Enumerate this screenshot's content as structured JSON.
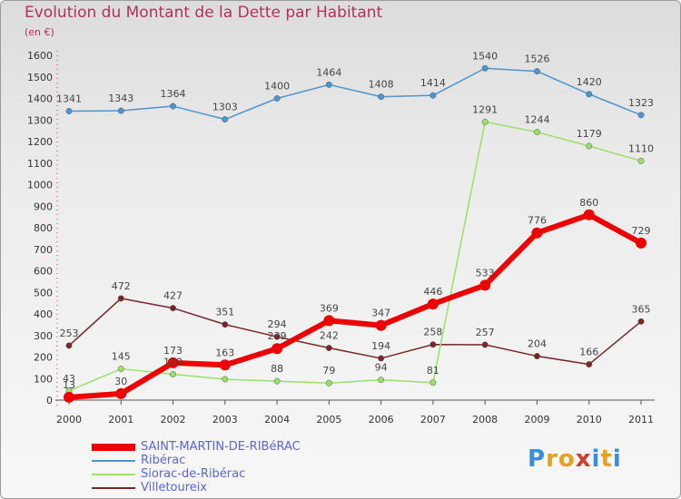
{
  "title": "Evolution du Montant de la Dette par Habitant",
  "unit": "(en €)",
  "logo": {
    "text": "Proxiti",
    "colors": [
      "#3a8ee0",
      "#e8a020",
      "#e8a020",
      "#d33a2a",
      "#3a8ee0",
      "#e8a020",
      "#3a8ee0"
    ]
  },
  "chart_data": {
    "type": "line",
    "x": [
      "2000",
      "2001",
      "2002",
      "2003",
      "2004",
      "2005",
      "2006",
      "2007",
      "2008",
      "2009",
      "2010",
      "2011"
    ],
    "ylim": [
      0,
      1600
    ],
    "yticks": [
      0,
      100,
      200,
      300,
      400,
      500,
      600,
      700,
      800,
      900,
      1000,
      1100,
      1200,
      1300,
      1400,
      1500,
      1600
    ],
    "grid": false,
    "legend_position": "bottom-left",
    "series": [
      {
        "name": "SAINT-MARTIN-DE-RIBéRAC",
        "color": "#ee0000",
        "values": [
          13,
          30,
          173,
          163,
          239,
          369,
          347,
          446,
          533,
          776,
          860,
          729
        ],
        "labels": [
          "13",
          "30",
          "173",
          "163",
          "239",
          "369",
          "347",
          "446",
          "533",
          "776",
          "860",
          "729"
        ]
      },
      {
        "name": "Ribérac",
        "color": "#4d94d1",
        "values": [
          1341,
          1343,
          1364,
          1303,
          1400,
          1464,
          1408,
          1414,
          1540,
          1526,
          1420,
          1323
        ],
        "labels": [
          "1341",
          "1343",
          "1364",
          "1303",
          "1400",
          "1464",
          "1408",
          "1414",
          "1540",
          "1526",
          "1420",
          "1323"
        ]
      },
      {
        "name": "Siorac-de-Ribérac",
        "color": "#9ae06a",
        "values": [
          43,
          145,
          120,
          97,
          88,
          79,
          94,
          81,
          1291,
          1244,
          1179,
          1110
        ],
        "labels": [
          "43",
          "145",
          "120",
          "",
          "88",
          "79",
          "94",
          "81",
          "1291",
          "1244",
          "1179",
          "1110"
        ]
      },
      {
        "name": "Villetoureix",
        "color": "#7a2626",
        "values": [
          253,
          472,
          427,
          351,
          294,
          242,
          194,
          258,
          257,
          204,
          166,
          365
        ],
        "labels": [
          "253",
          "472",
          "427",
          "351",
          "294",
          "242",
          "194",
          "258",
          "257",
          "204",
          "166",
          "365"
        ]
      }
    ]
  }
}
